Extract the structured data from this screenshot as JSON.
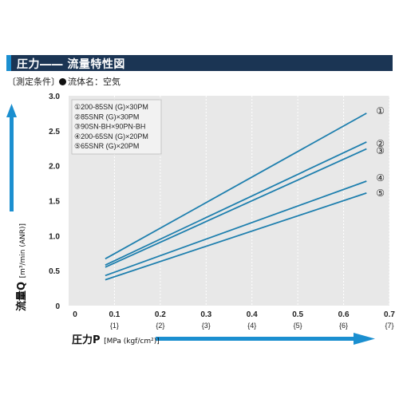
{
  "header": {
    "title": "圧力―― 流量特性図"
  },
  "conditions": {
    "label": "〔測定条件〕",
    "value": "流体名：空気"
  },
  "axis": {
    "y_name": "流量Q",
    "y_unit": "[m³/min (ANR)]",
    "x_name": "圧力P",
    "x_unit": "[MPa (kgf/cm²)]"
  },
  "colors": {
    "line": "#1e7fae",
    "plot_bg": "#e8e8e8",
    "arrow": "#1b8fd0",
    "title_bg": "#1b3554"
  },
  "chart_data": {
    "type": "line",
    "title": "圧力―― 流量特性図",
    "xlabel": "圧力P [MPa (kgf/cm²)]",
    "ylabel": "流量Q [m³/min (ANR)]",
    "xlim": [
      0,
      0.7
    ],
    "ylim": [
      0,
      3.0
    ],
    "x_ticks": [
      "0",
      "0.1",
      "0.2",
      "0.3",
      "0.4",
      "0.5",
      "0.6",
      "0.7"
    ],
    "x_ticks_kgf": [
      "{1}",
      "{2}",
      "{3}",
      "{4}",
      "{5}",
      "{6}",
      "{7}"
    ],
    "y_ticks": [
      "0",
      "0.5",
      "1.0",
      "1.5",
      "2.0",
      "2.5",
      "3.0"
    ],
    "grid": "vertical-dashed",
    "legend_position": "top-left",
    "series": [
      {
        "name": "①200-85SN (G)×30PM",
        "marker": "①",
        "x": [
          0.08,
          0.65
        ],
        "y": [
          0.67,
          2.75
        ]
      },
      {
        "name": "②85SNR (G)×30PM",
        "marker": "②",
        "x": [
          0.08,
          0.65
        ],
        "y": [
          0.58,
          2.34
        ]
      },
      {
        "name": "③90SN-BH×90PN-BH",
        "marker": "③",
        "x": [
          0.08,
          0.65
        ],
        "y": [
          0.55,
          2.24
        ]
      },
      {
        "name": "④200-65SN (G)×20PM",
        "marker": "④",
        "x": [
          0.08,
          0.65
        ],
        "y": [
          0.43,
          1.78
        ]
      },
      {
        "name": "⑤65SNR (G)×20PM",
        "marker": "⑤",
        "x": [
          0.08,
          0.65
        ],
        "y": [
          0.37,
          1.61
        ]
      }
    ]
  }
}
